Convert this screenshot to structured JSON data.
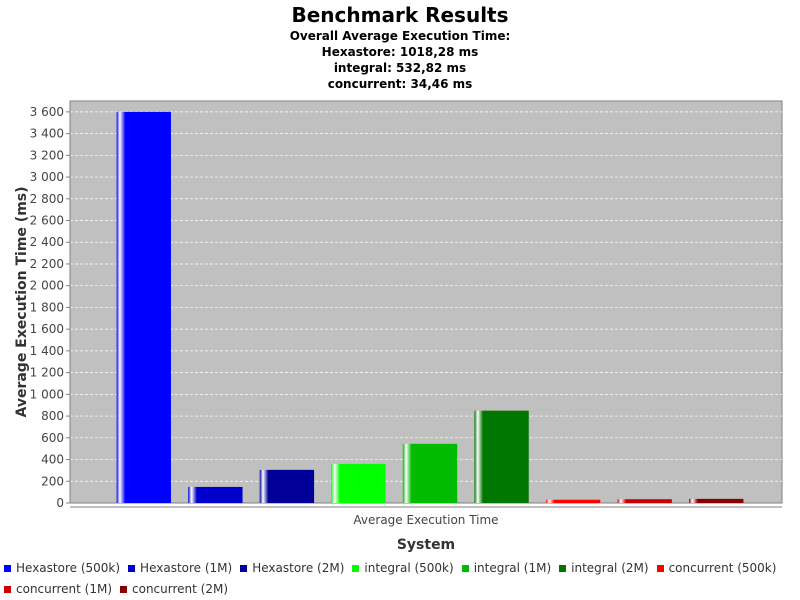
{
  "chart_data": {
    "type": "bar",
    "title": "Benchmark Results",
    "subtitle_lines": [
      "Overall Average Execution Time:",
      "Hexastore: 1018,28 ms",
      "integral: 532,82 ms",
      "concurrent: 34,46 ms"
    ],
    "xlabel": "System",
    "ylabel": "Average Execution Time (ms)",
    "categories": [
      "Average Execution Time"
    ],
    "ylim": [
      0,
      3700
    ],
    "yticks": [
      0,
      200,
      400,
      600,
      800,
      1000,
      1200,
      1400,
      1600,
      1800,
      2000,
      2200,
      2400,
      2600,
      2800,
      3000,
      3200,
      3400,
      3600
    ],
    "ytick_labels": [
      "0",
      "200",
      "400",
      "600",
      "800",
      "1 000",
      "1 200",
      "1 400",
      "1 600",
      "1 800",
      "2 000",
      "2 200",
      "2 400",
      "2 600",
      "2 800",
      "3 000",
      "3 200",
      "3 400",
      "3 600"
    ],
    "grid": true,
    "legend_position": "bottom",
    "plot_background": "#c0c0c0",
    "series": [
      {
        "name": "Hexastore (500k)",
        "values": [
          3600
        ],
        "color": "#0000ff"
      },
      {
        "name": "Hexastore (1M)",
        "values": [
          148
        ],
        "color": "#0000cc"
      },
      {
        "name": "Hexastore (2M)",
        "values": [
          305
        ],
        "color": "#000099"
      },
      {
        "name": "integral (500k)",
        "values": [
          360
        ],
        "color": "#00ff00"
      },
      {
        "name": "integral (1M)",
        "values": [
          545
        ],
        "color": "#00bb00"
      },
      {
        "name": "integral (2M)",
        "values": [
          850
        ],
        "color": "#007700"
      },
      {
        "name": "concurrent (500k)",
        "values": [
          30
        ],
        "color": "#ff0000"
      },
      {
        "name": "concurrent (1M)",
        "values": [
          35
        ],
        "color": "#cc0000"
      },
      {
        "name": "concurrent (2M)",
        "values": [
          38
        ],
        "color": "#880000"
      }
    ]
  }
}
